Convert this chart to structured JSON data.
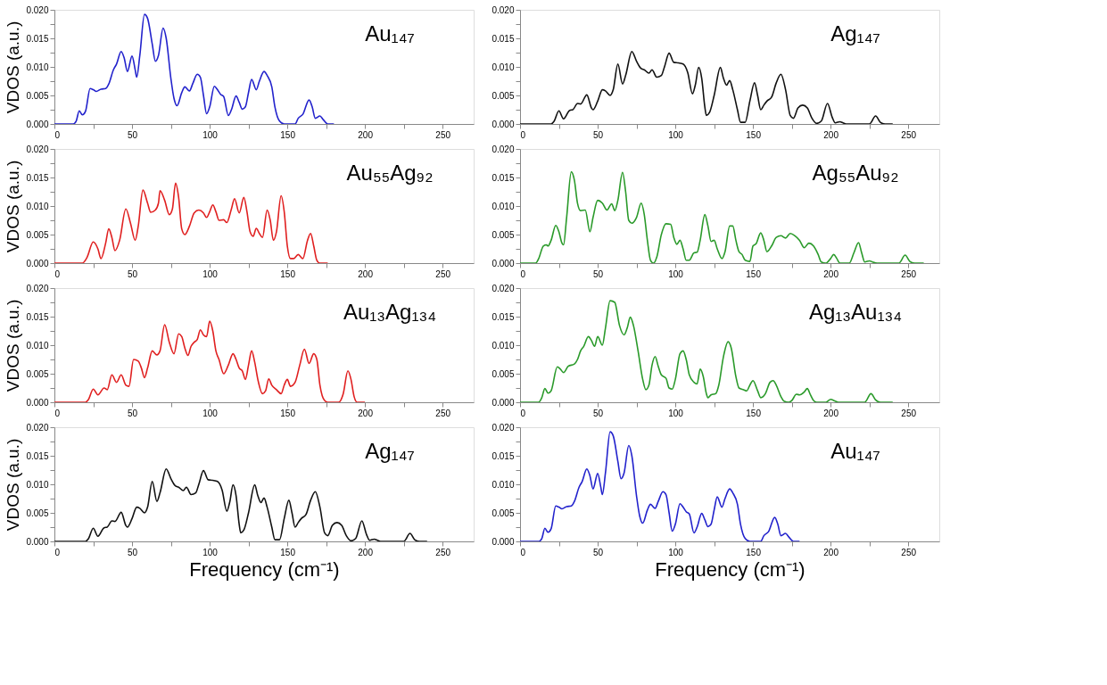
{
  "chart_data": [
    {
      "type": "line",
      "annotations": [
        "Au₁₄₇"
      ],
      "ylabel": "VDOS (a.u.)",
      "xlim": [
        0,
        270
      ],
      "ylim": [
        0,
        0.02
      ],
      "xticks": [
        0,
        {
          "value": 25,
          "label": null
        },
        50,
        {
          "value": 75,
          "label": null
        },
        100,
        {
          "value": 125,
          "label": null
        },
        150,
        {
          "value": 175,
          "label": null
        },
        200,
        {
          "value": 225,
          "label": null
        },
        250
      ],
      "yticks": [
        {
          "value": 0,
          "label": "0.000"
        },
        {
          "value": 0.0025,
          "label": null
        },
        {
          "value": 0.005,
          "label": "0.005"
        },
        {
          "value": 0.0075,
          "label": null
        },
        {
          "value": 0.01,
          "label": "0.010"
        },
        {
          "value": 0.0125,
          "label": null
        },
        {
          "value": 0.015,
          "label": "0.015"
        },
        {
          "value": 0.0175,
          "label": null
        },
        {
          "value": 0.02,
          "label": "0.020"
        }
      ],
      "series": [
        {
          "color": "#2222cc",
          "x": [
            0,
            12,
            14,
            16,
            18,
            20,
            23,
            25,
            27,
            30,
            33,
            35,
            38,
            40,
            43,
            45,
            47,
            50,
            52,
            53,
            55,
            58,
            60,
            63,
            65,
            67,
            70,
            72,
            75,
            77,
            79,
            82,
            84,
            87,
            89,
            92,
            94,
            96,
            98,
            100,
            103,
            105,
            107,
            109,
            112,
            114,
            117,
            119,
            121,
            123,
            125,
            127,
            130,
            132,
            135,
            137,
            140,
            142,
            145,
            148,
            155,
            157,
            160,
            164,
            166,
            168,
            171,
            173,
            176,
            180
          ],
          "values": [
            0,
            0,
            0.0005,
            0.0023,
            0.0016,
            0.0022,
            0.0062,
            0.006,
            0.0057,
            0.0061,
            0.0062,
            0.007,
            0.0095,
            0.0105,
            0.0127,
            0.0115,
            0.0092,
            0.0119,
            0.0095,
            0.0082,
            0.012,
            0.0192,
            0.0185,
            0.014,
            0.011,
            0.012,
            0.0168,
            0.015,
            0.008,
            0.0045,
            0.0032,
            0.0055,
            0.0065,
            0.0058,
            0.007,
            0.0087,
            0.0082,
            0.005,
            0.0018,
            0.003,
            0.0066,
            0.006,
            0.0052,
            0.0048,
            0.0015,
            0.0025,
            0.0049,
            0.0038,
            0.0026,
            0.003,
            0.0055,
            0.0078,
            0.006,
            0.0075,
            0.0092,
            0.0085,
            0.0065,
            0.003,
            0.0005,
            0,
            0,
            0.001,
            0.0017,
            0.0042,
            0.003,
            0.001,
            0.0014,
            0.0008,
            0,
            0
          ]
        }
      ]
    },
    {
      "type": "line",
      "annotations": [
        "Ag₁₄₇"
      ],
      "xlim": [
        0,
        270
      ],
      "ylim": [
        0,
        0.02
      ],
      "xticks": [
        0,
        {
          "value": 25,
          "label": null
        },
        50,
        {
          "value": 75,
          "label": null
        },
        100,
        {
          "value": 125,
          "label": null
        },
        150,
        {
          "value": 175,
          "label": null
        },
        200,
        {
          "value": 225,
          "label": null
        },
        250
      ],
      "yticks": [
        {
          "value": 0,
          "label": "0.000"
        },
        {
          "value": 0.0025,
          "label": null
        },
        {
          "value": 0.005,
          "label": "0.005"
        },
        {
          "value": 0.0075,
          "label": null
        },
        {
          "value": 0.01,
          "label": "0.010"
        },
        {
          "value": 0.0125,
          "label": null
        },
        {
          "value": 0.015,
          "label": "0.015"
        },
        {
          "value": 0.0175,
          "label": null
        },
        {
          "value": 0.02,
          "label": "0.020"
        }
      ],
      "series": [
        {
          "color": "#111111",
          "x": [
            0,
            20,
            22,
            25,
            28,
            32,
            34,
            37,
            39,
            43,
            46,
            47,
            50,
            53,
            55,
            58,
            60,
            63,
            66,
            68,
            72,
            75,
            78,
            80,
            83,
            85,
            88,
            91,
            93,
            96,
            99,
            102,
            105,
            108,
            111,
            113,
            115,
            117,
            119,
            120,
            122,
            125,
            129,
            131,
            133,
            135,
            137,
            140,
            142,
            145,
            148,
            151,
            153,
            155,
            157,
            159,
            162,
            165,
            168,
            171,
            174,
            176,
            179,
            182,
            185,
            188,
            191,
            194,
            198,
            201,
            203,
            206,
            208,
            210,
            225,
            229,
            232,
            235,
            240
          ],
          "values": [
            0,
            0,
            0.0005,
            0.0023,
            0.0009,
            0.0024,
            0.0025,
            0.0036,
            0.0035,
            0.0051,
            0.0028,
            0.0025,
            0.004,
            0.006,
            0.0058,
            0.005,
            0.006,
            0.0105,
            0.007,
            0.0085,
            0.0127,
            0.011,
            0.0097,
            0.0095,
            0.0089,
            0.0095,
            0.0082,
            0.0085,
            0.01,
            0.0124,
            0.0108,
            0.0107,
            0.0105,
            0.009,
            0.0053,
            0.007,
            0.0099,
            0.008,
            0.003,
            0.0015,
            0.002,
            0.005,
            0.0099,
            0.008,
            0.0068,
            0.0076,
            0.006,
            0.0025,
            0.0003,
            0.0003,
            0.004,
            0.0072,
            0.005,
            0.0025,
            0.0033,
            0.004,
            0.0047,
            0.0072,
            0.0087,
            0.006,
            0.0015,
            0.001,
            0.0028,
            0.0033,
            0.0028,
            0.001,
            0.0001,
            0.0005,
            0.0036,
            0.0012,
            0.0002,
            0.0004,
            0.0002,
            0,
            0,
            0.0014,
            0.0003,
            0,
            0
          ]
        }
      ]
    },
    {
      "type": "line",
      "annotations": [
        "Au₅₅Ag₉₂"
      ],
      "ylabel": "VDOS (a.u.)",
      "xlim": [
        0,
        270
      ],
      "ylim": [
        0,
        0.02
      ],
      "xticks": [
        0,
        {
          "value": 25,
          "label": null
        },
        50,
        {
          "value": 75,
          "label": null
        },
        100,
        {
          "value": 125,
          "label": null
        },
        150,
        {
          "value": 175,
          "label": null
        },
        200,
        {
          "value": 225,
          "label": null
        },
        250
      ],
      "yticks": [
        {
          "value": 0,
          "label": "0.000"
        },
        {
          "value": 0.0025,
          "label": null
        },
        {
          "value": 0.005,
          "label": "0.005"
        },
        {
          "value": 0.0075,
          "label": null
        },
        {
          "value": 0.01,
          "label": "0.010"
        },
        {
          "value": 0.0125,
          "label": null
        },
        {
          "value": 0.015,
          "label": "0.015"
        },
        {
          "value": 0.0175,
          "label": null
        },
        {
          "value": 0.02,
          "label": "0.020"
        }
      ],
      "series": [
        {
          "color": "#e02020",
          "x": [
            0,
            18,
            21,
            25,
            28,
            30,
            33,
            35,
            37,
            39,
            42,
            46,
            49,
            52,
            54,
            57,
            60,
            62,
            65,
            67,
            68,
            71,
            74,
            76,
            78,
            80,
            82,
            84,
            87,
            90,
            93,
            96,
            98,
            100,
            102,
            104,
            106,
            109,
            111,
            114,
            116,
            119,
            122,
            124,
            126,
            128,
            130,
            132,
            134,
            137,
            139,
            141,
            143,
            146,
            148,
            150,
            152,
            154,
            157,
            160,
            163,
            165,
            167,
            169,
            171,
            176
          ],
          "values": [
            0,
            0,
            0.001,
            0.0037,
            0.0025,
            0.0008,
            0.0035,
            0.006,
            0.0045,
            0.0022,
            0.004,
            0.0095,
            0.007,
            0.004,
            0.0065,
            0.0128,
            0.0105,
            0.0089,
            0.0093,
            0.0105,
            0.0127,
            0.011,
            0.0085,
            0.0095,
            0.014,
            0.0115,
            0.006,
            0.005,
            0.0065,
            0.0088,
            0.0093,
            0.0088,
            0.008,
            0.009,
            0.0102,
            0.009,
            0.0075,
            0.0076,
            0.0071,
            0.0095,
            0.0113,
            0.0088,
            0.0115,
            0.009,
            0.0055,
            0.0047,
            0.0061,
            0.0052,
            0.0045,
            0.0093,
            0.0075,
            0.004,
            0.0055,
            0.0118,
            0.009,
            0.003,
            0.0008,
            0.0008,
            0.0015,
            0.0008,
            0.004,
            0.0052,
            0.003,
            0.0005,
            0,
            0
          ]
        }
      ]
    },
    {
      "type": "line",
      "annotations": [
        "Ag₅₅Au₉₂"
      ],
      "xlim": [
        0,
        270
      ],
      "ylim": [
        0,
        0.02
      ],
      "xticks": [
        0,
        {
          "value": 25,
          "label": null
        },
        50,
        {
          "value": 75,
          "label": null
        },
        100,
        {
          "value": 125,
          "label": null
        },
        150,
        {
          "value": 175,
          "label": null
        },
        200,
        {
          "value": 225,
          "label": null
        },
        250
      ],
      "yticks": [
        {
          "value": 0,
          "label": "0.000"
        },
        {
          "value": 0.0025,
          "label": null
        },
        {
          "value": 0.005,
          "label": "0.005"
        },
        {
          "value": 0.0075,
          "label": null
        },
        {
          "value": 0.01,
          "label": "0.010"
        },
        {
          "value": 0.0125,
          "label": null
        },
        {
          "value": 0.015,
          "label": "0.015"
        },
        {
          "value": 0.0175,
          "label": null
        },
        {
          "value": 0.02,
          "label": "0.020"
        }
      ],
      "series": [
        {
          "color": "#2a9a2a",
          "x": [
            0,
            10,
            12,
            15,
            17,
            18,
            20,
            23,
            25,
            27,
            28,
            30,
            33,
            35,
            37,
            39,
            42,
            45,
            47,
            50,
            53,
            56,
            59,
            61,
            63,
            66,
            68,
            70,
            72,
            75,
            78,
            80,
            82,
            84,
            86,
            88,
            91,
            94,
            97,
            99,
            101,
            103,
            105,
            107,
            109,
            112,
            114,
            116,
            119,
            121,
            123,
            125,
            127,
            130,
            132,
            135,
            137,
            139,
            141,
            143,
            145,
            148,
            150,
            152,
            155,
            157,
            159,
            162,
            165,
            168,
            171,
            174,
            177,
            180,
            183,
            186,
            189,
            192,
            194,
            197,
            200,
            202,
            204,
            206,
            212,
            215,
            218,
            220,
            222,
            225,
            227,
            230,
            244,
            248,
            251,
            254,
            260
          ],
          "values": [
            0,
            0,
            0.0008,
            0.003,
            0.0032,
            0.003,
            0.004,
            0.0066,
            0.0055,
            0.0035,
            0.0032,
            0.008,
            0.016,
            0.0145,
            0.0105,
            0.0092,
            0.0093,
            0.0055,
            0.008,
            0.011,
            0.0105,
            0.0093,
            0.0104,
            0.0092,
            0.011,
            0.0159,
            0.0125,
            0.0075,
            0.007,
            0.008,
            0.0105,
            0.0085,
            0.004,
            0.0005,
            0,
            0.001,
            0.005,
            0.0069,
            0.0068,
            0.0045,
            0.0033,
            0.004,
            0.0025,
            0.0005,
            0.0005,
            0.0018,
            0.0019,
            0.004,
            0.0085,
            0.0065,
            0.0038,
            0.004,
            0.0025,
            0.0008,
            0.002,
            0.0065,
            0.0065,
            0.004,
            0.002,
            0.0015,
            0.0005,
            0.0003,
            0.003,
            0.0034,
            0.0053,
            0.004,
            0.002,
            0.003,
            0.0045,
            0.0048,
            0.0044,
            0.0052,
            0.0048,
            0.004,
            0.0027,
            0.0035,
            0.003,
            0.0015,
            0.0002,
            0,
            0.0008,
            0.0015,
            0.0008,
            0,
            0,
            0.0018,
            0.0036,
            0.0018,
            0.0002,
            0.0004,
            0.0002,
            0,
            0,
            0.0014,
            0.0003,
            0,
            0
          ]
        }
      ]
    },
    {
      "type": "line",
      "annotations": [
        "Au₁₃Ag₁₃₄"
      ],
      "ylabel": "VDOS (a.u.)",
      "xlim": [
        0,
        270
      ],
      "ylim": [
        0,
        0.02
      ],
      "xticks": [
        0,
        {
          "value": 25,
          "label": null
        },
        50,
        {
          "value": 75,
          "label": null
        },
        100,
        {
          "value": 125,
          "label": null
        },
        150,
        {
          "value": 175,
          "label": null
        },
        200,
        {
          "value": 225,
          "label": null
        },
        250
      ],
      "yticks": [
        {
          "value": 0,
          "label": "0.000"
        },
        {
          "value": 0.0025,
          "label": null
        },
        {
          "value": 0.005,
          "label": "0.005"
        },
        {
          "value": 0.0075,
          "label": null
        },
        {
          "value": 0.01,
          "label": "0.010"
        },
        {
          "value": 0.0125,
          "label": null
        },
        {
          "value": 0.015,
          "label": "0.015"
        },
        {
          "value": 0.0175,
          "label": null
        },
        {
          "value": 0.02,
          "label": "0.020"
        }
      ],
      "series": [
        {
          "color": "#e02020",
          "x": [
            0,
            20,
            22,
            25,
            28,
            32,
            34,
            37,
            40,
            43,
            46,
            48,
            51,
            54,
            56,
            58,
            60,
            63,
            66,
            68,
            71,
            74,
            77,
            80,
            82,
            84,
            86,
            88,
            90,
            92,
            94,
            96,
            98,
            100,
            102,
            104,
            106,
            109,
            112,
            115,
            117,
            119,
            121,
            123,
            125,
            127,
            129,
            131,
            134,
            136,
            138,
            140,
            143,
            146,
            148,
            150,
            152,
            155,
            158,
            161,
            164,
            167,
            169,
            171,
            174,
            176,
            183,
            186,
            189,
            191,
            193,
            195,
            200
          ],
          "values": [
            0,
            0,
            0.0005,
            0.0023,
            0.0013,
            0.0025,
            0.0022,
            0.0048,
            0.0035,
            0.0048,
            0.003,
            0.0028,
            0.0075,
            0.0072,
            0.006,
            0.0043,
            0.006,
            0.009,
            0.0083,
            0.009,
            0.0136,
            0.0105,
            0.0085,
            0.012,
            0.0115,
            0.0095,
            0.0082,
            0.0098,
            0.0105,
            0.011,
            0.0127,
            0.0118,
            0.0115,
            0.0142,
            0.0125,
            0.009,
            0.0075,
            0.005,
            0.0065,
            0.0085,
            0.0075,
            0.006,
            0.0055,
            0.004,
            0.0065,
            0.009,
            0.007,
            0.004,
            0.0015,
            0.002,
            0.0041,
            0.003,
            0.0022,
            0.0015,
            0.003,
            0.004,
            0.0028,
            0.0035,
            0.0065,
            0.0093,
            0.0068,
            0.0085,
            0.0075,
            0.003,
            0.0003,
            0,
            0,
            0.0015,
            0.0055,
            0.004,
            0.001,
            0,
            0
          ]
        }
      ]
    },
    {
      "type": "line",
      "annotations": [
        "Ag₁₃Au₁₃₄"
      ],
      "xlim": [
        0,
        270
      ],
      "ylim": [
        0,
        0.02
      ],
      "xticks": [
        0,
        {
          "value": 25,
          "label": null
        },
        50,
        {
          "value": 75,
          "label": null
        },
        100,
        {
          "value": 125,
          "label": null
        },
        150,
        {
          "value": 175,
          "label": null
        },
        200,
        {
          "value": 225,
          "label": null
        },
        250
      ],
      "yticks": [
        {
          "value": 0,
          "label": "0.000"
        },
        {
          "value": 0.0025,
          "label": null
        },
        {
          "value": 0.005,
          "label": "0.005"
        },
        {
          "value": 0.0075,
          "label": null
        },
        {
          "value": 0.01,
          "label": "0.010"
        },
        {
          "value": 0.0125,
          "label": null
        },
        {
          "value": 0.015,
          "label": "0.015"
        },
        {
          "value": 0.0175,
          "label": null
        },
        {
          "value": 0.02,
          "label": "0.020"
        }
      ],
      "series": [
        {
          "color": "#2a9a2a",
          "x": [
            0,
            12,
            14,
            16,
            18,
            20,
            24,
            26,
            28,
            31,
            35,
            37,
            39,
            41,
            44,
            46,
            48,
            50,
            53,
            55,
            58,
            61,
            64,
            67,
            69,
            71,
            73,
            76,
            79,
            81,
            83,
            85,
            87,
            89,
            91,
            94,
            96,
            98,
            100,
            103,
            105,
            107,
            109,
            112,
            114,
            116,
            118,
            120,
            121,
            123,
            126,
            128,
            131,
            134,
            136,
            139,
            141,
            144,
            146,
            148,
            150,
            153,
            155,
            158,
            161,
            163,
            165,
            168,
            170,
            173,
            175,
            178,
            180,
            183,
            185,
            187,
            189,
            191,
            197,
            200,
            203,
            205,
            222,
            226,
            229,
            232,
            240
          ],
          "values": [
            0,
            0,
            0.0008,
            0.0024,
            0.0016,
            0.002,
            0.0062,
            0.0058,
            0.0052,
            0.0063,
            0.0067,
            0.0075,
            0.009,
            0.0098,
            0.0115,
            0.0108,
            0.0098,
            0.0115,
            0.01,
            0.013,
            0.0178,
            0.0175,
            0.0135,
            0.0118,
            0.013,
            0.0149,
            0.0135,
            0.009,
            0.004,
            0.0022,
            0.003,
            0.0065,
            0.008,
            0.0063,
            0.0048,
            0.0042,
            0.0025,
            0.0023,
            0.004,
            0.0085,
            0.009,
            0.0075,
            0.0048,
            0.0035,
            0.0032,
            0.0058,
            0.0045,
            0.0015,
            0.0008,
            0.0013,
            0.0015,
            0.003,
            0.008,
            0.0106,
            0.0095,
            0.0045,
            0.0025,
            0.0022,
            0.002,
            0.003,
            0.0038,
            0.002,
            0.0008,
            0.0015,
            0.0035,
            0.0038,
            0.003,
            0.001,
            0.0002,
            0,
            0.0003,
            0.0014,
            0.0013,
            0.0018,
            0.0024,
            0.0013,
            0.0003,
            0,
            0,
            0.0005,
            0.0002,
            0,
            0,
            0.0015,
            0.0004,
            0,
            0
          ]
        }
      ]
    },
    {
      "type": "line",
      "annotations": [
        "Ag₁₄₇"
      ],
      "ylabel": "VDOS (a.u.)",
      "xlabel": "Frequency (cm⁻¹)",
      "xlim": [
        0,
        270
      ],
      "ylim": [
        0,
        0.02
      ],
      "xticks": [
        0,
        {
          "value": 25,
          "label": null
        },
        50,
        {
          "value": 75,
          "label": null
        },
        100,
        {
          "value": 125,
          "label": null
        },
        150,
        {
          "value": 175,
          "label": null
        },
        200,
        {
          "value": 225,
          "label": null
        },
        250
      ],
      "yticks": [
        {
          "value": 0,
          "label": "0.000"
        },
        {
          "value": 0.0025,
          "label": null
        },
        {
          "value": 0.005,
          "label": "0.005"
        },
        {
          "value": 0.0075,
          "label": null
        },
        {
          "value": 0.01,
          "label": "0.010"
        },
        {
          "value": 0.0125,
          "label": null
        },
        {
          "value": 0.015,
          "label": "0.015"
        },
        {
          "value": 0.0175,
          "label": null
        },
        {
          "value": 0.02,
          "label": "0.020"
        }
      ],
      "series": [
        {
          "color": "#111111",
          "x": [
            0,
            20,
            22,
            25,
            28,
            32,
            34,
            37,
            39,
            43,
            46,
            47,
            50,
            53,
            55,
            58,
            60,
            63,
            66,
            68,
            72,
            75,
            78,
            80,
            83,
            85,
            88,
            91,
            93,
            96,
            99,
            102,
            105,
            108,
            111,
            113,
            115,
            117,
            119,
            120,
            122,
            125,
            129,
            131,
            133,
            135,
            137,
            140,
            142,
            145,
            148,
            151,
            153,
            155,
            157,
            159,
            162,
            165,
            168,
            171,
            174,
            176,
            179,
            182,
            185,
            188,
            191,
            194,
            198,
            201,
            203,
            206,
            208,
            210,
            225,
            229,
            232,
            235,
            240
          ],
          "values": [
            0,
            0,
            0.0005,
            0.0023,
            0.0009,
            0.0024,
            0.0025,
            0.0036,
            0.0035,
            0.0051,
            0.0028,
            0.0025,
            0.004,
            0.006,
            0.0058,
            0.005,
            0.006,
            0.0105,
            0.007,
            0.0085,
            0.0127,
            0.011,
            0.0097,
            0.0095,
            0.0089,
            0.0095,
            0.0082,
            0.0085,
            0.01,
            0.0124,
            0.0108,
            0.0107,
            0.0105,
            0.009,
            0.0053,
            0.007,
            0.0099,
            0.008,
            0.003,
            0.0015,
            0.002,
            0.005,
            0.0099,
            0.008,
            0.0068,
            0.0076,
            0.006,
            0.0025,
            0.0003,
            0.0003,
            0.004,
            0.0072,
            0.005,
            0.0025,
            0.0033,
            0.004,
            0.0047,
            0.0072,
            0.0087,
            0.006,
            0.0015,
            0.001,
            0.0028,
            0.0033,
            0.0028,
            0.001,
            0.0001,
            0.0005,
            0.0036,
            0.0012,
            0.0002,
            0.0004,
            0.0002,
            0,
            0,
            0.0014,
            0.0003,
            0,
            0
          ]
        }
      ]
    },
    {
      "type": "line",
      "annotations": [
        "Au₁₄₇"
      ],
      "xlabel": "Frequency (cm⁻¹)",
      "xlim": [
        0,
        270
      ],
      "ylim": [
        0,
        0.02
      ],
      "xticks": [
        0,
        {
          "value": 25,
          "label": null
        },
        50,
        {
          "value": 75,
          "label": null
        },
        100,
        {
          "value": 125,
          "label": null
        },
        150,
        {
          "value": 175,
          "label": null
        },
        200,
        {
          "value": 225,
          "label": null
        },
        250
      ],
      "yticks": [
        {
          "value": 0,
          "label": "0.000"
        },
        {
          "value": 0.0025,
          "label": null
        },
        {
          "value": 0.005,
          "label": "0.005"
        },
        {
          "value": 0.0075,
          "label": null
        },
        {
          "value": 0.01,
          "label": "0.010"
        },
        {
          "value": 0.0125,
          "label": null
        },
        {
          "value": 0.015,
          "label": "0.015"
        },
        {
          "value": 0.0175,
          "label": null
        },
        {
          "value": 0.02,
          "label": "0.020"
        }
      ],
      "series": [
        {
          "color": "#2222cc",
          "x": [
            0,
            12,
            14,
            16,
            18,
            20,
            23,
            25,
            27,
            30,
            33,
            35,
            38,
            40,
            43,
            45,
            47,
            50,
            52,
            53,
            55,
            58,
            60,
            63,
            65,
            67,
            70,
            72,
            75,
            77,
            79,
            82,
            84,
            87,
            89,
            92,
            94,
            96,
            98,
            100,
            103,
            105,
            107,
            109,
            112,
            114,
            117,
            119,
            121,
            123,
            125,
            127,
            130,
            132,
            135,
            137,
            140,
            142,
            145,
            148,
            155,
            157,
            160,
            164,
            166,
            168,
            171,
            173,
            176,
            180
          ],
          "values": [
            0,
            0,
            0.0005,
            0.0023,
            0.0016,
            0.0022,
            0.0062,
            0.006,
            0.0057,
            0.0061,
            0.0062,
            0.007,
            0.0095,
            0.0105,
            0.0127,
            0.0115,
            0.0092,
            0.0119,
            0.0095,
            0.0082,
            0.012,
            0.0192,
            0.0185,
            0.014,
            0.011,
            0.012,
            0.0168,
            0.015,
            0.008,
            0.0045,
            0.0032,
            0.0055,
            0.0065,
            0.0058,
            0.007,
            0.0087,
            0.0082,
            0.005,
            0.0018,
            0.003,
            0.0066,
            0.006,
            0.0052,
            0.0048,
            0.0015,
            0.0025,
            0.0049,
            0.0038,
            0.0026,
            0.003,
            0.0055,
            0.0078,
            0.006,
            0.0075,
            0.0092,
            0.0085,
            0.0065,
            0.003,
            0.0005,
            0,
            0,
            0.001,
            0.0017,
            0.0042,
            0.003,
            0.001,
            0.0014,
            0.0008,
            0,
            0
          ]
        }
      ]
    }
  ]
}
